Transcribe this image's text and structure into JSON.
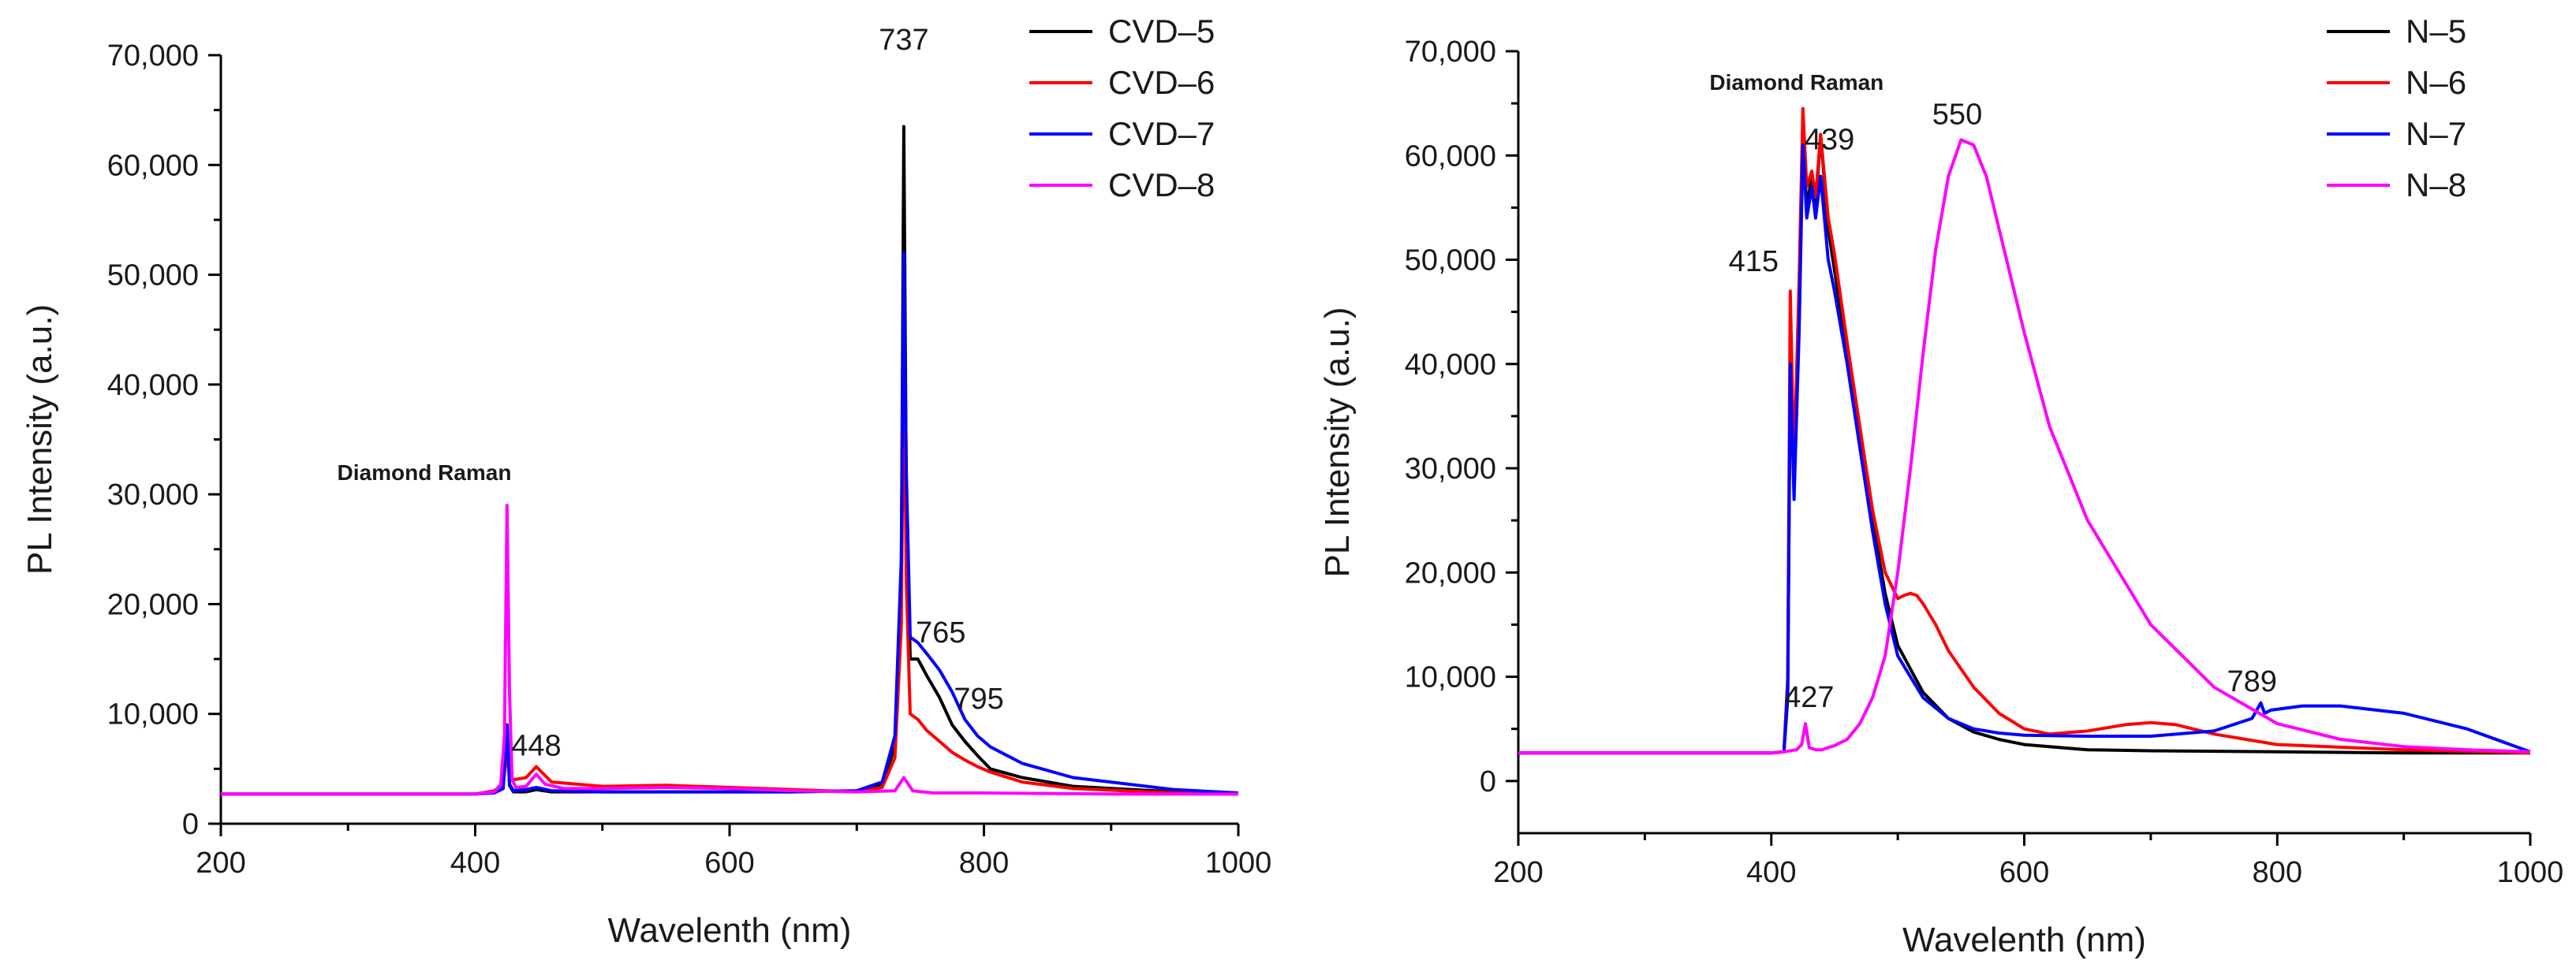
{
  "chart_data": [
    {
      "type": "line",
      "xlabel": "Wavelenth (nm)",
      "ylabel": "PL Intensity (a.u.)",
      "xlim": [
        200,
        1000
      ],
      "ylim": [
        0,
        70000
      ],
      "xticks": [
        200,
        400,
        600,
        800,
        1000
      ],
      "yticks": [
        0,
        10000,
        20000,
        30000,
        40000,
        50000,
        60000,
        70000
      ],
      "xtick_labels": [
        "200",
        "400",
        "600",
        "800",
        "1000"
      ],
      "ytick_labels": [
        "0",
        "10,000",
        "20,000",
        "30,000",
        "40,000",
        "50,000",
        "60,000",
        "70,000"
      ],
      "legend_position": "top-right",
      "series": [
        {
          "name": "CVD–5",
          "color": "#000000",
          "x": [
            200,
            300,
            400,
            415,
            422,
            425,
            427,
            430,
            440,
            448,
            460,
            500,
            560,
            650,
            700,
            720,
            730,
            735,
            737,
            739,
            742,
            748,
            755,
            765,
            775,
            785,
            795,
            805,
            830,
            870,
            950,
            1000
          ],
          "y": [
            2700,
            2700,
            2700,
            2900,
            3800,
            9000,
            3500,
            2900,
            2900,
            3100,
            2900,
            2900,
            2900,
            2900,
            3000,
            3600,
            7000,
            22000,
            63500,
            30000,
            15000,
            15000,
            13500,
            11500,
            9000,
            7500,
            6200,
            5000,
            4200,
            3400,
            2900,
            2700
          ]
        },
        {
          "name": "CVD–6",
          "color": "#ff0000",
          "x": [
            200,
            300,
            400,
            415,
            422,
            425,
            427,
            430,
            440,
            448,
            460,
            500,
            550,
            600,
            650,
            700,
            720,
            730,
            735,
            737,
            739,
            742,
            748,
            755,
            765,
            775,
            785,
            795,
            805,
            830,
            870,
            950,
            1000
          ],
          "y": [
            2700,
            2700,
            2700,
            3000,
            3600,
            6500,
            4500,
            4000,
            4200,
            5200,
            3800,
            3400,
            3500,
            3300,
            3100,
            2900,
            3300,
            6000,
            18000,
            44000,
            22000,
            10000,
            9500,
            8500,
            7500,
            6500,
            5800,
            5200,
            4700,
            3800,
            3200,
            2800,
            2700
          ]
        },
        {
          "name": "CVD–7",
          "color": "#0000ff",
          "x": [
            200,
            300,
            400,
            415,
            422,
            425,
            427,
            430,
            440,
            448,
            460,
            500,
            560,
            650,
            700,
            720,
            730,
            735,
            737,
            739,
            742,
            748,
            755,
            765,
            775,
            785,
            795,
            805,
            830,
            870,
            950,
            1000
          ],
          "y": [
            2700,
            2700,
            2700,
            2800,
            3200,
            9000,
            3600,
            3000,
            3100,
            3300,
            3000,
            2900,
            2900,
            2900,
            3000,
            3800,
            8000,
            24000,
            52000,
            32000,
            17000,
            16500,
            15500,
            14000,
            12000,
            9500,
            8000,
            7000,
            5500,
            4200,
            3100,
            2800
          ]
        },
        {
          "name": "CVD–8",
          "color": "#ff00ff",
          "x": [
            200,
            300,
            400,
            415,
            420,
            423,
            425,
            427,
            429,
            432,
            440,
            448,
            455,
            470,
            500,
            550,
            600,
            650,
            700,
            730,
            737,
            744,
            760,
            800,
            900,
            1000
          ],
          "y": [
            2700,
            2700,
            2700,
            2900,
            3500,
            8000,
            29000,
            12000,
            4000,
            3300,
            3400,
            4500,
            3600,
            3200,
            3200,
            3300,
            3200,
            3000,
            2900,
            3000,
            4200,
            3000,
            2800,
            2800,
            2700,
            2700
          ]
        }
      ],
      "annotations": [
        {
          "text": "737",
          "x": 737,
          "y": 70500,
          "style": "normal"
        },
        {
          "text": "765",
          "x": 766,
          "y": 16500,
          "style": "normal"
        },
        {
          "text": "795",
          "x": 796,
          "y": 10500,
          "style": "normal"
        },
        {
          "text": "448",
          "x": 448,
          "y": 6200,
          "style": "normal"
        },
        {
          "text": "Diamond Raman",
          "x": 360,
          "y": 31300,
          "style": "bold"
        }
      ]
    },
    {
      "type": "line",
      "xlabel": "Wavelenth (nm)",
      "ylabel": "PL Intensity (a.u.)",
      "xlim": [
        200,
        1000
      ],
      "ylim": [
        -5000,
        70000
      ],
      "xticks": [
        200,
        400,
        600,
        800,
        1000
      ],
      "yticks": [
        0,
        10000,
        20000,
        30000,
        40000,
        50000,
        60000,
        70000
      ],
      "xtick_labels": [
        "200",
        "400",
        "600",
        "800",
        "1000"
      ],
      "ytick_labels": [
        "0",
        "10,000",
        "20,000",
        "30,000",
        "40,000",
        "50,000",
        "60,000",
        "70,000"
      ],
      "legend_position": "top-right",
      "series": [
        {
          "name": "N–5",
          "color": "#000000",
          "x": [
            200,
            300,
            400,
            410,
            413,
            415,
            418,
            422,
            425,
            428,
            432,
            435,
            439,
            445,
            450,
            460,
            470,
            480,
            490,
            500,
            520,
            540,
            560,
            580,
            600,
            650,
            700,
            800,
            900,
            1000
          ],
          "y": [
            2700,
            2700,
            2700,
            2800,
            8000,
            40000,
            30000,
            45000,
            62000,
            55000,
            58000,
            55000,
            62000,
            53000,
            49000,
            41000,
            33000,
            25000,
            18000,
            13000,
            8500,
            6000,
            4700,
            4000,
            3500,
            3000,
            2900,
            2800,
            2700,
            2700
          ]
        },
        {
          "name": "N–6",
          "color": "#ff0000",
          "x": [
            200,
            300,
            400,
            410,
            413,
            415,
            418,
            422,
            425,
            428,
            432,
            435,
            439,
            445,
            450,
            460,
            470,
            480,
            490,
            500,
            505,
            510,
            515,
            520,
            530,
            540,
            560,
            580,
            600,
            620,
            650,
            680,
            700,
            720,
            750,
            800,
            900,
            1000
          ],
          "y": [
            2700,
            2700,
            2700,
            2800,
            10000,
            47000,
            30000,
            48000,
            64500,
            57000,
            58500,
            56000,
            62000,
            54000,
            50500,
            42000,
            34000,
            26000,
            20000,
            17500,
            17800,
            18000,
            17800,
            17000,
            15000,
            12500,
            9000,
            6500,
            5000,
            4500,
            4800,
            5400,
            5600,
            5400,
            4500,
            3500,
            3000,
            2700
          ]
        },
        {
          "name": "N–7",
          "color": "#0000ff",
          "x": [
            200,
            300,
            400,
            410,
            413,
            415,
            418,
            422,
            425,
            428,
            432,
            435,
            439,
            445,
            450,
            460,
            470,
            480,
            490,
            500,
            520,
            540,
            560,
            580,
            600,
            650,
            700,
            750,
            780,
            787,
            790,
            795,
            820,
            850,
            900,
            950,
            1000
          ],
          "y": [
            2700,
            2700,
            2700,
            2800,
            9000,
            40000,
            27000,
            43000,
            61000,
            54000,
            57000,
            54000,
            58000,
            50000,
            47000,
            40000,
            32000,
            24000,
            17000,
            12000,
            8000,
            6000,
            5000,
            4600,
            4400,
            4300,
            4300,
            4800,
            6000,
            7500,
            6500,
            6800,
            7200,
            7200,
            6500,
            5000,
            2800
          ]
        },
        {
          "name": "N–8",
          "color": "#ff00ff",
          "x": [
            200,
            300,
            400,
            410,
            420,
            424,
            427,
            430,
            435,
            440,
            450,
            460,
            470,
            480,
            490,
            500,
            510,
            520,
            530,
            540,
            550,
            560,
            570,
            580,
            600,
            620,
            650,
            700,
            750,
            800,
            850,
            900,
            950,
            1000
          ],
          "y": [
            2700,
            2700,
            2700,
            2800,
            3000,
            3500,
            5500,
            3200,
            3000,
            3000,
            3400,
            4000,
            5500,
            8000,
            12000,
            20000,
            30000,
            41000,
            51000,
            58000,
            61500,
            61000,
            58000,
            53000,
            43000,
            34000,
            25000,
            15000,
            9000,
            5500,
            4000,
            3300,
            3000,
            2800
          ]
        }
      ],
      "annotations": [
        {
          "text": "Diamond Raman",
          "x": 420,
          "y": 66300,
          "style": "bold"
        },
        {
          "text": "439",
          "x": 446,
          "y": 60600,
          "style": "normal"
        },
        {
          "text": "550",
          "x": 547,
          "y": 63000,
          "style": "normal"
        },
        {
          "text": "415",
          "x": 386,
          "y": 48900,
          "style": "normal"
        },
        {
          "text": "427",
          "x": 430,
          "y": 7100,
          "style": "normal"
        },
        {
          "text": "789",
          "x": 780,
          "y": 8600,
          "style": "normal"
        }
      ]
    }
  ]
}
